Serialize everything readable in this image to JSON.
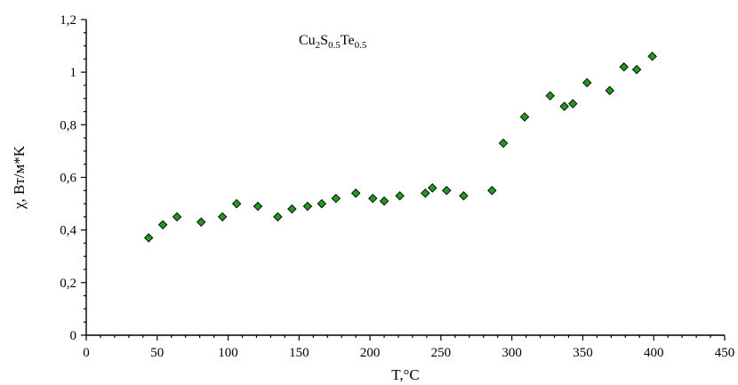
{
  "chart_data": {
    "type": "scatter",
    "xlabel": "T,°C",
    "ylabel": "χ, Вт/м*K",
    "xlim": [
      0,
      450
    ],
    "ylim": [
      0,
      1.2
    ],
    "x_ticks": [
      0,
      50,
      100,
      150,
      200,
      250,
      300,
      350,
      400,
      450
    ],
    "x_tick_labels": [
      "0",
      "50",
      "100",
      "150",
      "200",
      "250",
      "300",
      "350",
      "400",
      "450"
    ],
    "y_ticks": [
      0,
      0.2,
      0.4,
      0.6,
      0.8,
      1,
      1.2
    ],
    "y_tick_labels": [
      "0",
      "0,2",
      "0,4",
      "0,6",
      "0,8",
      "1",
      "1,2"
    ],
    "grid": false,
    "legend": "none",
    "annotation": {
      "parts": [
        {
          "text": "Cu",
          "sub": false
        },
        {
          "text": "2",
          "sub": true
        },
        {
          "text": "S",
          "sub": false
        },
        {
          "text": "0.5",
          "sub": true
        },
        {
          "text": "Te",
          "sub": false
        },
        {
          "text": "0.5",
          "sub": true
        }
      ]
    },
    "marker": {
      "shape": "diamond",
      "fill": "#1f9a1f",
      "stroke": "#000000"
    },
    "series": [
      {
        "points": [
          {
            "x": 44,
            "y": 0.37
          },
          {
            "x": 54,
            "y": 0.42
          },
          {
            "x": 64,
            "y": 0.45
          },
          {
            "x": 81,
            "y": 0.43
          },
          {
            "x": 96,
            "y": 0.45
          },
          {
            "x": 106,
            "y": 0.5
          },
          {
            "x": 121,
            "y": 0.49
          },
          {
            "x": 135,
            "y": 0.45
          },
          {
            "x": 145,
            "y": 0.48
          },
          {
            "x": 156,
            "y": 0.49
          },
          {
            "x": 166,
            "y": 0.5
          },
          {
            "x": 176,
            "y": 0.52
          },
          {
            "x": 190,
            "y": 0.54
          },
          {
            "x": 202,
            "y": 0.52
          },
          {
            "x": 210,
            "y": 0.51
          },
          {
            "x": 221,
            "y": 0.53
          },
          {
            "x": 239,
            "y": 0.54
          },
          {
            "x": 244,
            "y": 0.56
          },
          {
            "x": 254,
            "y": 0.55
          },
          {
            "x": 266,
            "y": 0.53
          },
          {
            "x": 286,
            "y": 0.55
          },
          {
            "x": 294,
            "y": 0.73
          },
          {
            "x": 309,
            "y": 0.83
          },
          {
            "x": 327,
            "y": 0.91
          },
          {
            "x": 337,
            "y": 0.87
          },
          {
            "x": 343,
            "y": 0.88
          },
          {
            "x": 353,
            "y": 0.96
          },
          {
            "x": 369,
            "y": 0.93
          },
          {
            "x": 379,
            "y": 1.02
          },
          {
            "x": 388,
            "y": 1.01
          },
          {
            "x": 399,
            "y": 1.06
          }
        ]
      }
    ]
  }
}
